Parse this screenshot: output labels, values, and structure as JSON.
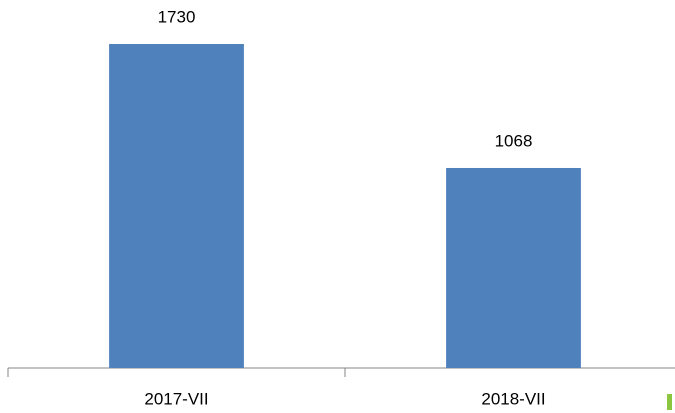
{
  "chart_data": {
    "type": "bar",
    "categories": [
      "2017-VII",
      "2018-VII"
    ],
    "values": [
      1730,
      1068
    ],
    "color": "#4f81bd"
  }
}
